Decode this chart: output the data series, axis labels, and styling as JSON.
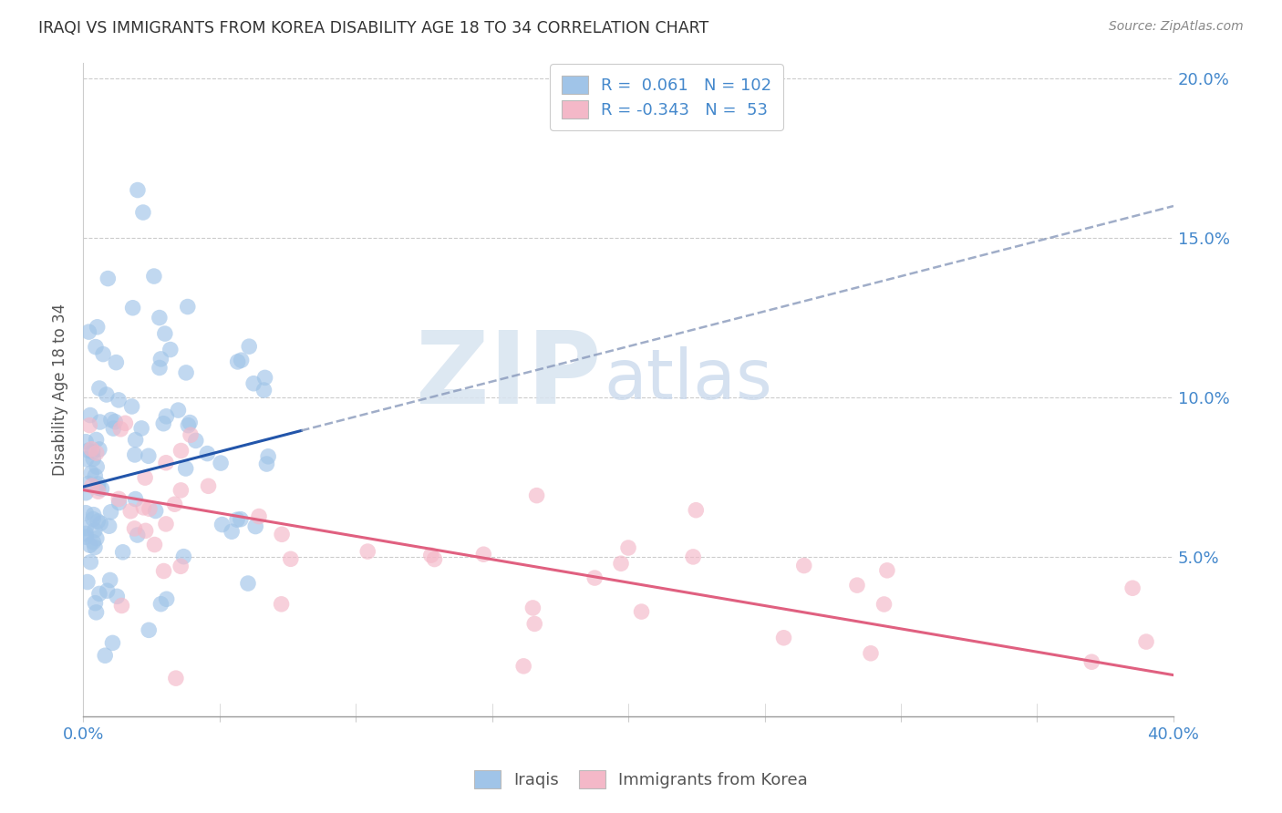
{
  "title": "IRAQI VS IMMIGRANTS FROM KOREA DISABILITY AGE 18 TO 34 CORRELATION CHART",
  "source": "Source: ZipAtlas.com",
  "ylabel": "Disability Age 18 to 34",
  "xmin": 0.0,
  "xmax": 0.4,
  "ymin": 0.0,
  "ymax": 0.205,
  "yticks": [
    0.05,
    0.1,
    0.15,
    0.2
  ],
  "ytick_labels": [
    "5.0%",
    "10.0%",
    "15.0%",
    "20.0%"
  ],
  "iraqis_r": 0.061,
  "iraqis_n": 102,
  "korea_r": -0.343,
  "korea_n": 53,
  "watermark_zip": "ZIP",
  "watermark_atlas": "atlas",
  "blue_color": "#a0c4e8",
  "pink_color": "#f4b8c8",
  "blue_line_color": "#2255aa",
  "pink_line_color": "#e06080",
  "axis_color": "#4488cc",
  "grid_color": "#cccccc",
  "title_color": "#333333",
  "source_color": "#888888",
  "legend_edge_color": "#cccccc",
  "iraq_line_solid_end": 0.08,
  "iraq_intercept": 0.072,
  "iraq_slope": 0.22,
  "korea_intercept": 0.071,
  "korea_slope": -0.145
}
